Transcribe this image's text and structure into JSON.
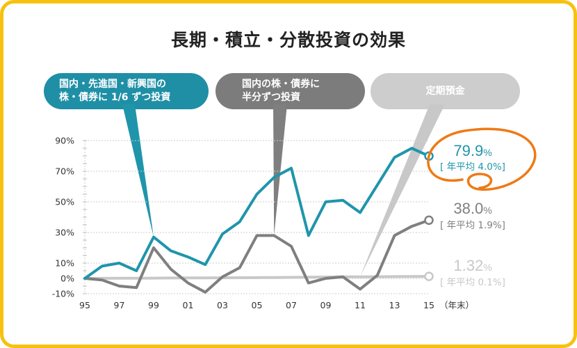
{
  "title": "長期・積立・分散投資の効果",
  "callouts": {
    "diversified": [
      "国内・先進国・新興国の",
      "株・債券に 1/6 ずつ投資"
    ],
    "half": [
      "国内の株・債券に",
      "半分ずつ投資"
    ],
    "deposit": "定期預金"
  },
  "end_labels": {
    "diversified": {
      "value": "79.9",
      "unit": "%",
      "annual": "[ 年平均 4.0%]"
    },
    "half": {
      "value": "38.0",
      "unit": "%",
      "annual": "[ 年平均 1.9%]"
    },
    "deposit": {
      "value": "1.32",
      "unit": "%",
      "annual": "[ 年平均 0.1%]"
    }
  },
  "colors": {
    "diversified": "#1f95ab",
    "half": "#7f7f7f",
    "deposit": "#c8c8c8",
    "highlight_circle": "#ee7a16",
    "frame": "#f7c20f"
  },
  "chart_data": {
    "type": "line",
    "title": "長期・積立・分散投資の効果",
    "x": [
      1995,
      1996,
      1997,
      1998,
      1999,
      2000,
      2001,
      2002,
      2003,
      2004,
      2005,
      2006,
      2007,
      2008,
      2009,
      2010,
      2011,
      2012,
      2013,
      2014,
      2015
    ],
    "x_tick_labels": [
      "95",
      "97",
      "99",
      "01",
      "03",
      "05",
      "07",
      "09",
      "11",
      "13",
      "15"
    ],
    "x_tick_years": [
      1995,
      1997,
      1999,
      2001,
      2003,
      2005,
      2007,
      2009,
      2011,
      2013,
      2015
    ],
    "x_unit_label": "（年末）",
    "y_tick_labels": [
      "90%",
      "70%",
      "50%",
      "30%",
      "10%",
      "0%",
      "-10%"
    ],
    "y_tick_values": [
      90,
      70,
      50,
      30,
      10,
      0,
      -10
    ],
    "ylim": [
      -10,
      90
    ],
    "grid": "dashed horizontal",
    "series": [
      {
        "key": "diversified",
        "values": [
          0,
          8,
          10,
          5,
          27,
          18,
          14,
          9,
          29,
          37,
          55,
          66,
          72,
          28,
          50,
          51,
          43,
          61,
          79,
          85,
          79.9
        ]
      },
      {
        "key": "half",
        "values": [
          0,
          -1,
          -5,
          -6,
          20,
          6,
          -3,
          -9,
          1,
          7,
          28,
          28,
          21,
          -3,
          0,
          1,
          -7,
          2,
          28,
          34,
          38.0
        ]
      },
      {
        "key": "deposit",
        "values": [
          0,
          0.05,
          0.1,
          0.15,
          0.2,
          0.25,
          0.3,
          0.35,
          0.4,
          0.45,
          0.5,
          0.6,
          0.7,
          0.8,
          0.9,
          1.0,
          1.05,
          1.1,
          1.2,
          1.25,
          1.32
        ]
      }
    ]
  }
}
